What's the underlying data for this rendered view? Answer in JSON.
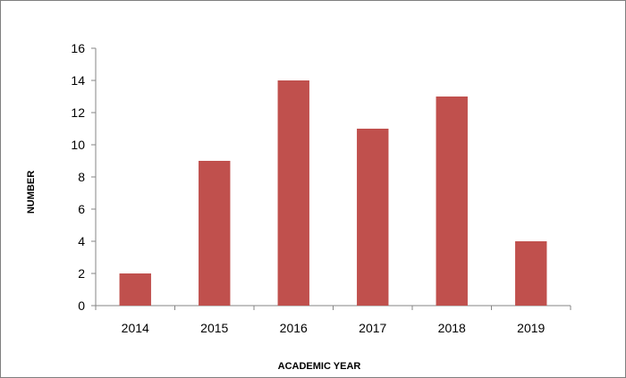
{
  "chart_data": {
    "type": "bar",
    "categories": [
      "2014",
      "2015",
      "2016",
      "2017",
      "2018",
      "2019"
    ],
    "values": [
      2,
      9,
      14,
      11,
      13,
      4
    ],
    "title": "",
    "xlabel": "ACADEMIC YEAR",
    "ylabel": "NUMBER",
    "ylim": [
      0,
      16
    ],
    "yticks": [
      "0",
      "2",
      "4",
      "6",
      "8",
      "10",
      "12",
      "14",
      "16"
    ],
    "grid": false,
    "legend": "none",
    "bar_color": "#c0504d"
  }
}
